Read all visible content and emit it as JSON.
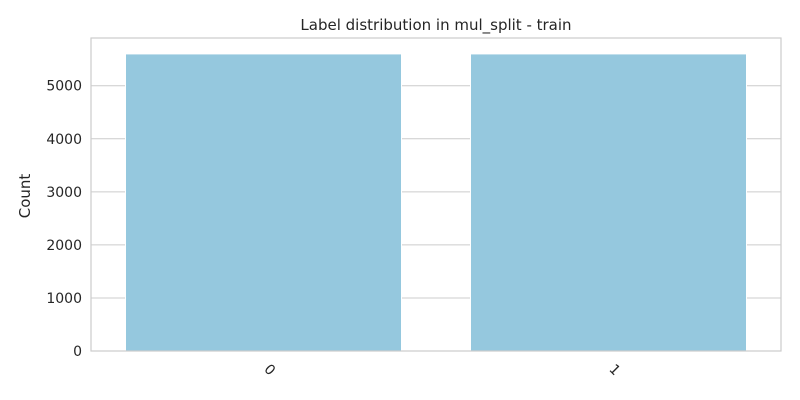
{
  "chart_data": {
    "type": "bar",
    "title": "Label distribution in mul_split - train",
    "xlabel": "",
    "ylabel": "Count",
    "categories": [
      "0",
      "1"
    ],
    "values": [
      5600,
      5600
    ],
    "ylim": [
      0,
      5900
    ],
    "yticks": [
      0,
      1000,
      2000,
      3000,
      4000,
      5000
    ],
    "grid": true,
    "bar_color": "#95c8de",
    "grid_color": "#cccccc",
    "x_tick_rotation_deg": 45
  }
}
